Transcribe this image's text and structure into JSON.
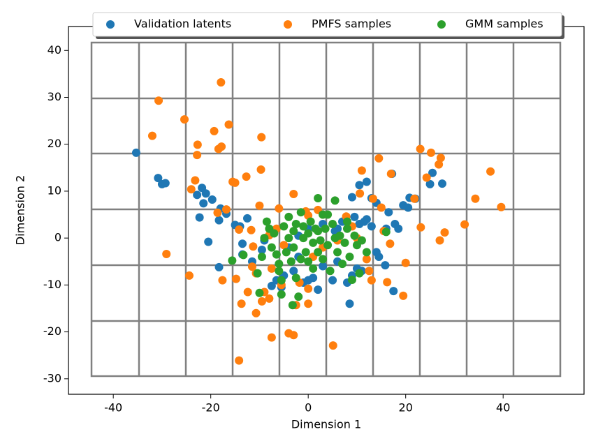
{
  "chart_data": {
    "type": "scatter",
    "xlabel": "Dimension 1",
    "ylabel": "Dimension 2",
    "xlim": [
      -49.2,
      56.6
    ],
    "ylim": [
      -33.3,
      45.1
    ],
    "xticks": [
      -40,
      -20,
      0,
      20,
      40
    ],
    "yticks": [
      -30,
      -20,
      -10,
      0,
      10,
      20,
      30,
      40
    ],
    "legend": "top",
    "series": [
      {
        "name": "Validation latents",
        "color": "#1f77b4",
        "x": [
          -35.3,
          -30.8,
          -30,
          -29.3,
          -22.8,
          -21.8,
          -21,
          -21.5,
          -22.3,
          -19.7,
          -20.5,
          -18.3,
          -18,
          -16.8,
          -18.3,
          -15,
          -14,
          -13.5,
          -12.5,
          -13.5,
          -11.5,
          -9.5,
          -9,
          -7.5,
          -6.5,
          -5.5,
          -5,
          -3,
          -2,
          -1,
          0,
          1,
          2,
          3,
          5,
          6,
          8,
          8.5,
          9,
          10,
          11,
          10.5,
          11.5,
          12,
          13,
          13,
          14,
          12,
          10.5,
          9,
          9.5,
          7,
          6,
          5.5,
          14,
          14.5,
          15.8,
          16,
          16.5,
          17.2,
          17.8,
          18.5,
          17.5,
          19.5,
          20.5,
          20.8,
          22,
          25,
          25.5,
          27.5,
          -2,
          0,
          3,
          -4
        ],
        "values": [
          18.2,
          12.8,
          11.5,
          11.7,
          9.2,
          10.7,
          9.5,
          7.4,
          4.4,
          8.2,
          -0.8,
          3.8,
          6.3,
          5.2,
          -6.2,
          2.8,
          2.5,
          -1.2,
          4.2,
          -3.5,
          -5,
          -2.5,
          -0.5,
          -10.2,
          -9,
          -10.5,
          -8,
          -7,
          -4,
          -9.5,
          -9,
          -8.5,
          -11,
          -6,
          -9,
          -5,
          -9.5,
          -14,
          -8,
          -6.5,
          -7,
          3,
          3.5,
          4,
          2.5,
          8.5,
          7.5,
          12,
          11.3,
          8.7,
          4.5,
          3.5,
          2,
          1.5,
          -3,
          -4,
          -5.8,
          2,
          5.5,
          13.7,
          3,
          2,
          -11.3,
          7,
          6.5,
          8.6,
          8.4,
          11.5,
          13.9,
          11.6,
          0.5,
          2,
          3,
          -2
        ]
      },
      {
        "name": "PMFS samples",
        "color": "#ff7f0e",
        "x": [
          -30.7,
          -32,
          -25.4,
          -24,
          -23.2,
          -22.8,
          -22.7,
          -18.4,
          -17.9,
          -17.8,
          -19.3,
          -16.3,
          -15.5,
          -15,
          -12.7,
          -9.6,
          -9.7,
          -10,
          -18.6,
          -16.8,
          -14.2,
          -11.7,
          -11.3,
          -29.1,
          -24.4,
          -17.6,
          -14.8,
          -13.7,
          -12.4,
          -11.5,
          -10.7,
          -10.7,
          -9.5,
          -9,
          -8,
          -7.5,
          -7.5,
          -5.5,
          -4,
          -3,
          -2.5,
          -1.8,
          0,
          0,
          1,
          -3,
          -0.5,
          0,
          2,
          3,
          -14.2,
          5.1,
          -6,
          -8,
          -6.5,
          -5,
          7.8,
          9,
          10,
          10.6,
          11,
          12.5,
          13,
          13.3,
          14.5,
          15,
          15.5,
          16.2,
          16.8,
          17,
          19.5,
          20,
          21.8,
          23,
          23.1,
          24.3,
          25.2,
          26.8,
          27.2,
          27,
          28,
          32.1,
          34.3,
          37.4,
          39.6,
          12,
          3,
          6
        ],
        "values": [
          29.3,
          21.8,
          25.3,
          10.4,
          12.3,
          17.7,
          19.9,
          19,
          33.2,
          19.5,
          22.8,
          24.2,
          12,
          11.8,
          13.1,
          21.5,
          14.6,
          6.9,
          5.4,
          6.1,
          1.8,
          1.7,
          -1.8,
          -3.4,
          -8,
          -9,
          -8.7,
          -14,
          -11.5,
          -6.1,
          -7.5,
          -16,
          -13.5,
          -11.5,
          -12.9,
          -21.2,
          -6.5,
          -10,
          -20.3,
          -20.7,
          -14.3,
          -9.5,
          -10.8,
          -14,
          -4,
          9.4,
          5.7,
          4.8,
          6,
          5,
          -26.1,
          -22.9,
          6.3,
          0.6,
          2,
          -1.5,
          4.6,
          2.5,
          0,
          9.5,
          14.4,
          -7,
          -9,
          8.4,
          17,
          6.5,
          1.5,
          -9.4,
          -1.2,
          13.7,
          -12.3,
          -5.3,
          8.4,
          19,
          2.3,
          12.9,
          18.2,
          15.7,
          17.1,
          -0.5,
          1.2,
          2.9,
          8.4,
          14.2,
          6.6,
          -4.5,
          -2,
          -0.5
        ]
      },
      {
        "name": "GMM samples",
        "color": "#2ca02c",
        "x": [
          -15.6,
          -13.3,
          -10.4,
          -10,
          -9.5,
          -9,
          -8.5,
          -8,
          -7.5,
          -7,
          -6.5,
          -6,
          -5.5,
          -5.5,
          -5,
          -4.5,
          -4,
          -4,
          -3.5,
          -3,
          -3,
          -2.5,
          -2.5,
          -2,
          -3.2,
          -1.5,
          -1,
          -1,
          -0.5,
          0,
          0,
          0.5,
          1,
          1,
          1.5,
          2,
          2,
          2,
          2.5,
          3,
          3,
          3.5,
          4,
          4.5,
          5,
          5.5,
          5.5,
          6,
          6.5,
          7,
          7.5,
          8,
          8.5,
          9,
          9.5,
          10,
          10.5,
          11,
          12,
          16,
          8,
          4,
          -1.5,
          -6
        ],
        "values": [
          -4.8,
          -3.6,
          -7.5,
          -11.7,
          -4,
          0,
          3.5,
          2,
          -2,
          1,
          -3.5,
          -5.5,
          -9,
          -12,
          2.5,
          -3,
          0,
          4.5,
          -5,
          -2,
          1.5,
          3,
          -8.5,
          -12.5,
          -14.3,
          -4.5,
          0,
          2.5,
          -3,
          -5,
          1,
          3.5,
          -1,
          -6.5,
          2,
          -3,
          1.5,
          8.5,
          -0.5,
          5,
          -4.5,
          2,
          -1.5,
          -7,
          3,
          0,
          8,
          -3,
          0.5,
          -5.5,
          -1,
          2,
          -4,
          -8.9,
          0.5,
          -1.5,
          -7.5,
          -0.5,
          -3,
          1.3,
          3.5,
          5,
          5.5,
          -7
        ]
      }
    ]
  }
}
